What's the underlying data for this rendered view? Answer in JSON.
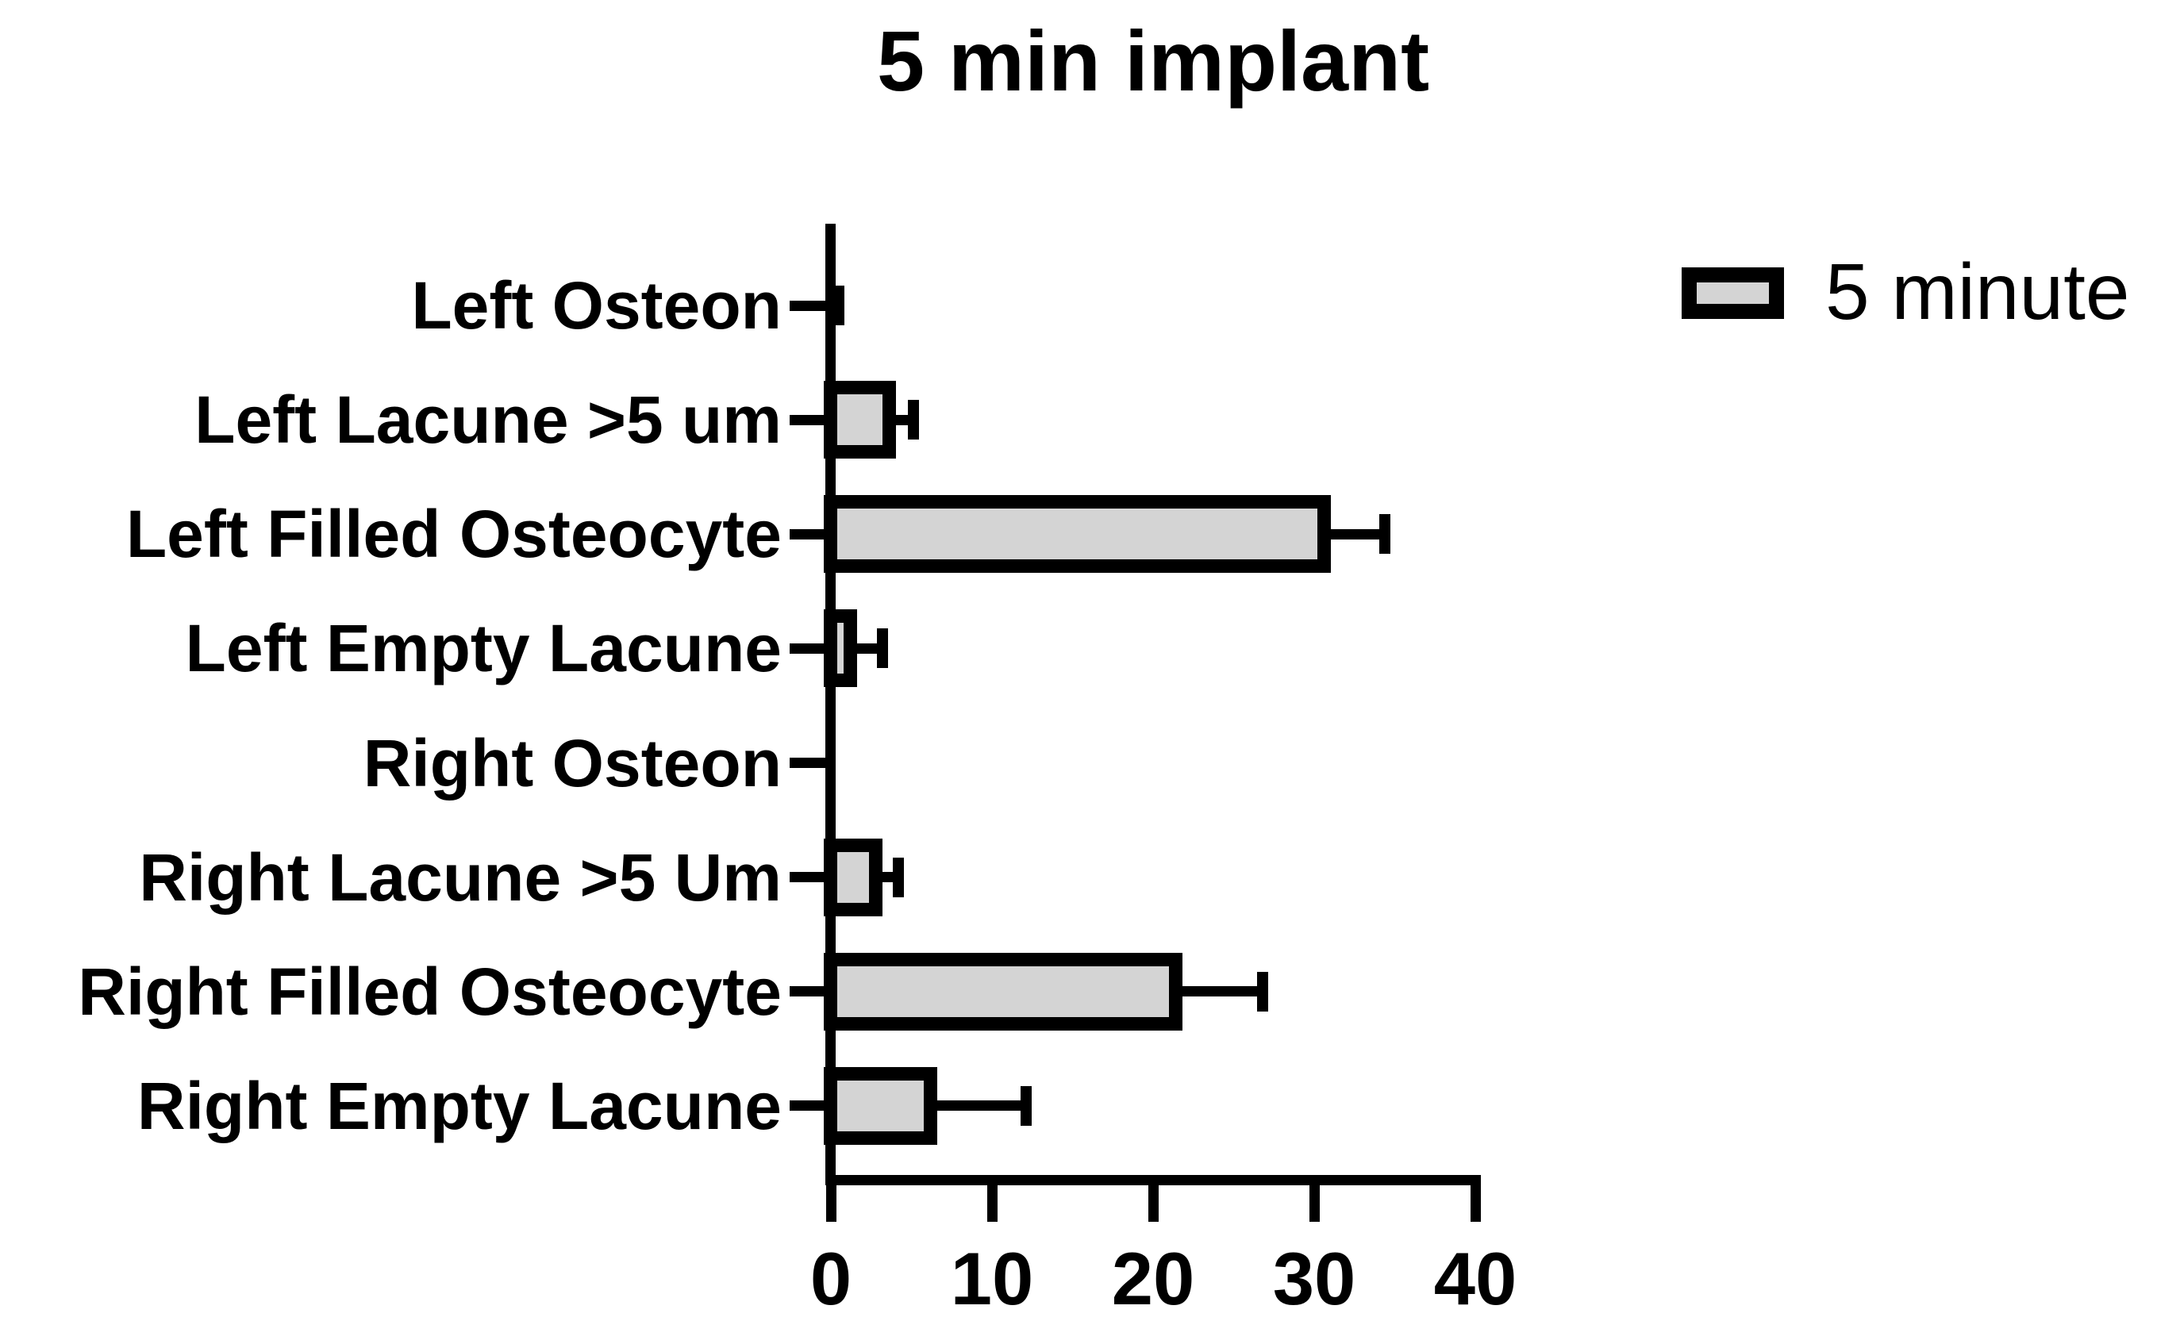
{
  "title": "5 min implant",
  "legend": {
    "label": "5 minute",
    "swatch_fill": "#d4d4d4",
    "swatch_border": "#000000"
  },
  "colors": {
    "background": "#ffffff",
    "bar_fill": "#d4d4d4",
    "bar_border": "#000000",
    "axis": "#000000",
    "text": "#000000"
  },
  "chart_data": {
    "type": "bar",
    "orientation": "horizontal",
    "title": "5 min implant",
    "categories": [
      "Left Osteon",
      "Left Lacune >5 um",
      "Left Filled Osteocyte",
      "Left Empty Lacune",
      "Right Osteon",
      "Right Lacune >5 Um",
      "Right Filled Osteocyte",
      "Right Empty Lacune"
    ],
    "series": [
      {
        "name": "5 minute",
        "values": [
          0,
          3.6,
          30.6,
          1.2,
          0,
          2.8,
          21.4,
          6.2
        ],
        "errors_upper": [
          0.5,
          1.5,
          3.8,
          2.0,
          0,
          1.4,
          5.4,
          5.9
        ]
      }
    ],
    "xlabel": "",
    "ylabel": "",
    "xticks": [
      0,
      10,
      20,
      30,
      40
    ],
    "xtick_labels": [
      "0",
      "10",
      "20",
      "30",
      "40"
    ],
    "xlim": [
      0,
      40.3
    ],
    "grid": false,
    "legend_position": "top-right",
    "error_bars": "upper-only",
    "category_order": "top-to-bottom"
  }
}
